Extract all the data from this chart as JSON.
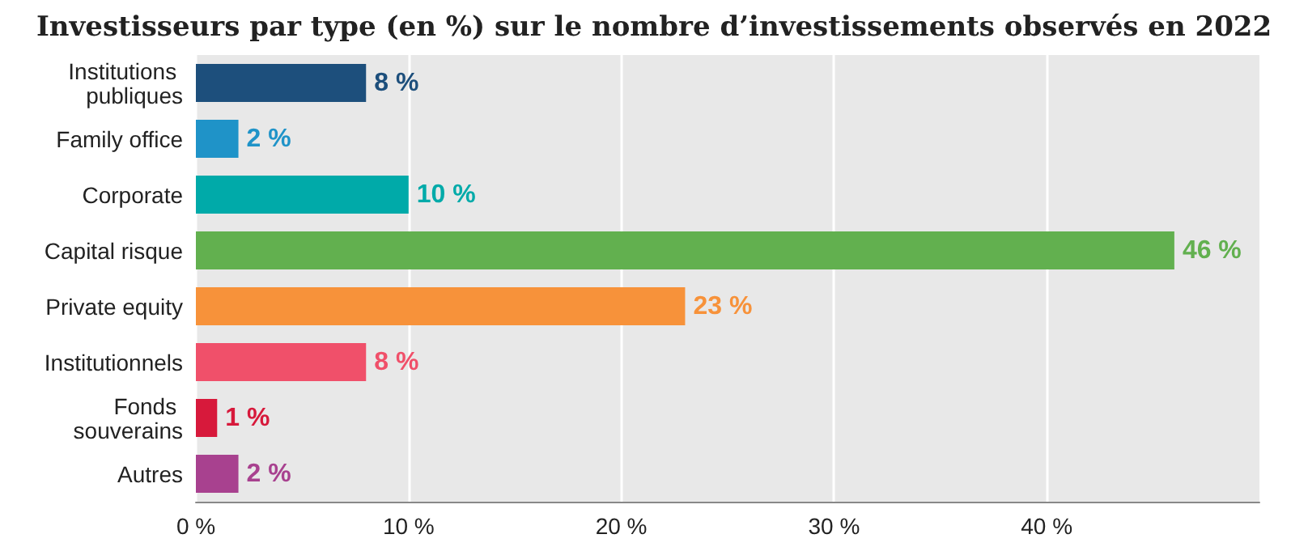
{
  "chart_data": {
    "type": "bar",
    "orientation": "horizontal",
    "title": "Investisseurs par type (en %) sur le nombre d’investissements observés en 2022",
    "categories": [
      "Institutions publiques",
      "Family office",
      "Corporate",
      "Capital risque",
      "Private equity",
      "Institutionnels",
      "Fonds souverains",
      "Autres"
    ],
    "values": [
      8,
      2,
      10,
      46,
      23,
      8,
      1,
      2
    ],
    "colors": [
      "#1d4f7c",
      "#1f93c8",
      "#00aaa9",
      "#62b04f",
      "#f7923a",
      "#f0506a",
      "#d7193b",
      "#a8418f"
    ],
    "value_labels": [
      "8 %",
      "2 %",
      "10 %",
      "46 %",
      "23 %",
      "8 %",
      "1 %",
      "2 %"
    ],
    "xlim": [
      0,
      50
    ],
    "xticks": [
      {
        "value": 0,
        "label": "0 %"
      },
      {
        "value": 10,
        "label": "10 %"
      },
      {
        "value": 20,
        "label": "20 %"
      },
      {
        "value": 30,
        "label": "30 %"
      },
      {
        "value": 40,
        "label": "40 %"
      }
    ],
    "grid": "x"
  }
}
